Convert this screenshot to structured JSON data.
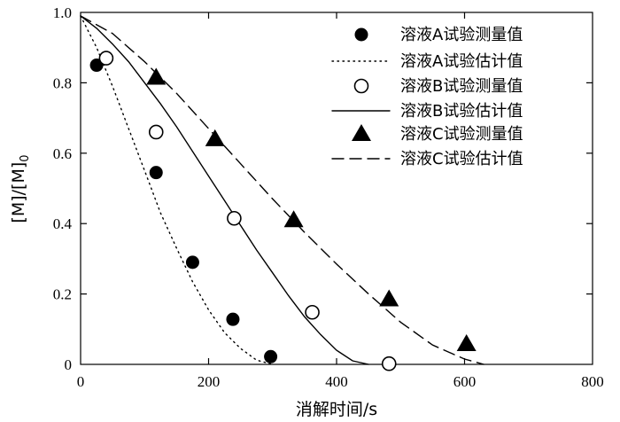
{
  "chart_data": {
    "type": "scatter",
    "xlabel": "消解时间/s",
    "ylabel": {
      "main": "[M]/[M]",
      "sub": "0"
    },
    "xlim": [
      0,
      800
    ],
    "ylim": [
      0,
      1.0
    ],
    "xticks": [
      0,
      200,
      400,
      600,
      800
    ],
    "xtick_labels": [
      "0",
      "200",
      "400",
      "600",
      "800"
    ],
    "yticks": [
      0,
      0.2,
      0.4,
      0.6,
      0.8,
      1.0
    ],
    "ytick_labels": [
      "0",
      "0.2",
      "0.4",
      "0.6",
      "0.8",
      "1.0"
    ],
    "grid": false,
    "legend_position": "top-right",
    "series": [
      {
        "name": "溶液A试验测量值",
        "kind": "scatter",
        "marker": "filled-circle",
        "x": [
          25,
          118,
          175,
          238,
          297
        ],
        "y": [
          0.85,
          0.545,
          0.29,
          0.128,
          0.022
        ]
      },
      {
        "name": "溶液A试验估计值",
        "kind": "line",
        "dash": "dotted",
        "x": [
          0,
          25,
          50,
          75,
          100,
          125,
          150,
          175,
          200,
          225,
          250,
          275,
          300
        ],
        "y": [
          0.99,
          0.9,
          0.79,
          0.67,
          0.55,
          0.43,
          0.33,
          0.235,
          0.155,
          0.09,
          0.045,
          0.012,
          0.0
        ]
      },
      {
        "name": "溶液B试验测量值",
        "kind": "scatter",
        "marker": "open-circle",
        "x": [
          40,
          118,
          240,
          362,
          482
        ],
        "y": [
          0.87,
          0.66,
          0.415,
          0.148,
          0.002
        ]
      },
      {
        "name": "溶液B试验估计值",
        "kind": "line",
        "dash": "solid",
        "x": [
          0,
          25,
          50,
          75,
          100,
          125,
          150,
          175,
          200,
          225,
          250,
          275,
          300,
          325,
          350,
          375,
          400,
          425,
          450
        ],
        "y": [
          0.99,
          0.955,
          0.91,
          0.86,
          0.8,
          0.74,
          0.675,
          0.605,
          0.535,
          0.465,
          0.395,
          0.325,
          0.26,
          0.195,
          0.135,
          0.085,
          0.04,
          0.01,
          0.0
        ]
      },
      {
        "name": "溶液C试验测量值",
        "kind": "scatter",
        "marker": "filled-triangle",
        "x": [
          118,
          210,
          333,
          482,
          603
        ],
        "y": [
          0.815,
          0.64,
          0.41,
          0.185,
          0.058
        ]
      },
      {
        "name": "溶液C试验估计值",
        "kind": "line",
        "dash": "dashed",
        "x": [
          0,
          50,
          100,
          150,
          200,
          250,
          300,
          350,
          400,
          450,
          500,
          550,
          600,
          630
        ],
        "y": [
          0.99,
          0.94,
          0.86,
          0.77,
          0.67,
          0.57,
          0.47,
          0.375,
          0.285,
          0.2,
          0.12,
          0.055,
          0.015,
          0.0
        ]
      }
    ]
  },
  "colors": {
    "ink": "#000000",
    "background": "#ffffff"
  }
}
